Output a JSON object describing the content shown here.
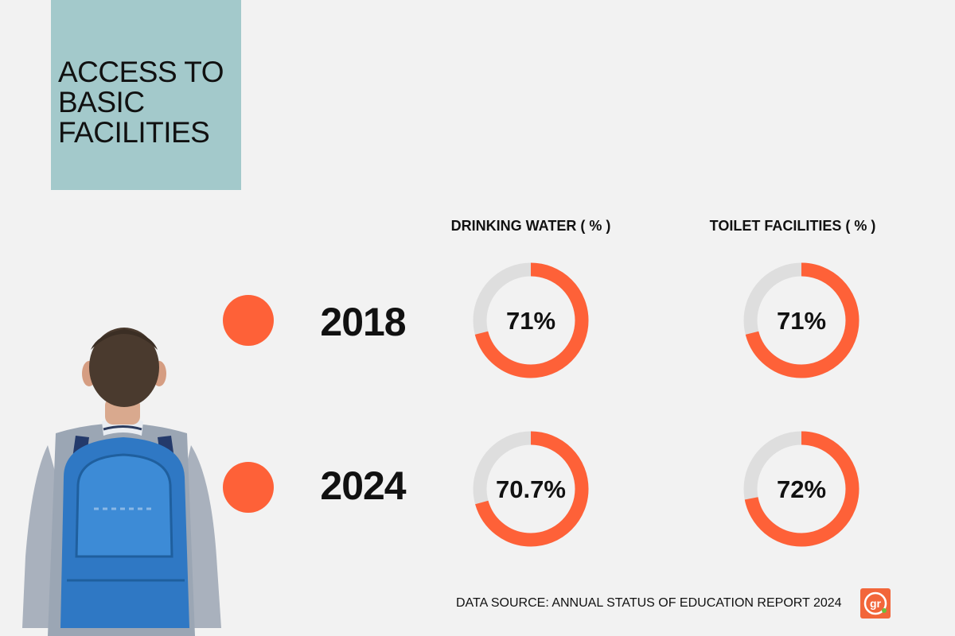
{
  "header": {
    "title_lines": [
      "ACCESS TO",
      "BASIC",
      "FACILITIES"
    ]
  },
  "colors": {
    "accent": "#fe6138",
    "track": "#dedede",
    "title_box": "#a3c9cb",
    "background": "#f2f2f2"
  },
  "chart_data": {
    "type": "donut",
    "columns": [
      "DRINKING WATER ( % )",
      "TOILET FACILITIES ( % )"
    ],
    "rows": [
      "2018",
      "2024"
    ],
    "series": [
      {
        "name": "DRINKING WATER ( % )",
        "values": [
          71,
          70.7
        ],
        "labels": [
          "71%",
          "70.7%"
        ]
      },
      {
        "name": "TOILET FACILITIES ( % )",
        "values": [
          71,
          72
        ],
        "labels": [
          "71%",
          "72%"
        ]
      }
    ],
    "max": 100
  },
  "footer": {
    "source": "DATA SOURCE: ANNUAL STATUS OF EDUCATION REPORT 2024",
    "logo_text": "gr",
    "logo_icon": "brand-logo-icon"
  },
  "illustration": {
    "icon": "student-with-backpack-icon"
  }
}
